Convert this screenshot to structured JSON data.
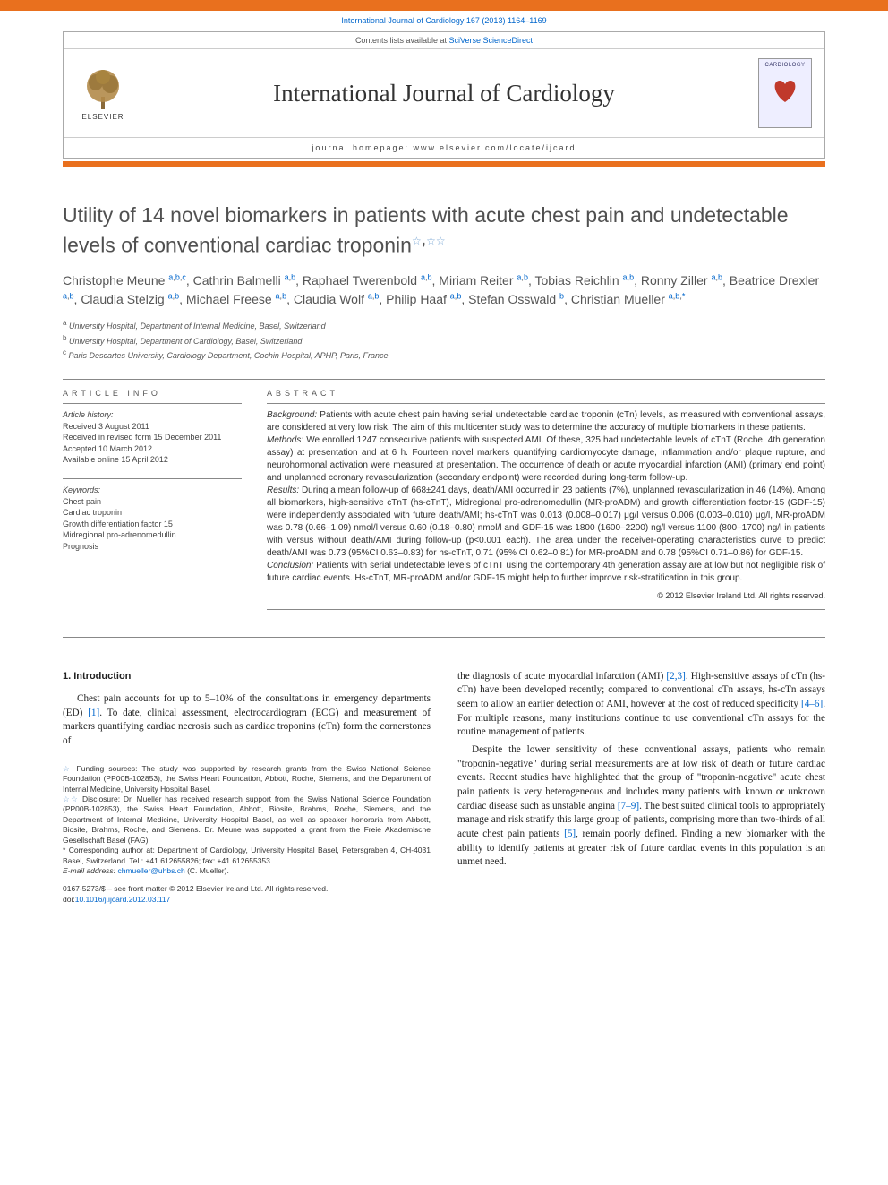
{
  "colors": {
    "orange": "#e9701e",
    "link": "#0066cc",
    "text": "#222",
    "grey": "#555",
    "rule": "#888"
  },
  "top_link": {
    "prefix": "",
    "journal": "International Journal of Cardiology 167 (2013) 1164–1169"
  },
  "header": {
    "contents_line_prefix": "Contents lists available at ",
    "contents_line_link": "SciVerse ScienceDirect",
    "journal_title": "International Journal of Cardiology",
    "homepage_label": "journal homepage: www.elsevier.com/locate/ijcard",
    "elsevier_label": "ELSEVIER",
    "cover_label": "CARDIOLOGY"
  },
  "article": {
    "title": "Utility of 14 novel biomarkers in patients with acute chest pain and undetectable levels of conventional cardiac troponin",
    "star1": "☆",
    "star2": "☆☆"
  },
  "authors_line": "Christophe Meune <sup><a>a</a>,<a>b</a>,<a>c</a></sup>, Cathrin Balmelli <sup><a>a</a>,<a>b</a></sup>, Raphael Twerenbold <sup><a>a</a>,<a>b</a></sup>, Miriam Reiter <sup><a>a</a>,<a>b</a></sup>, Tobias Reichlin <sup><a>a</a>,<a>b</a></sup>, Ronny Ziller <sup><a>a</a>,<a>b</a></sup>, Beatrice Drexler <sup><a>a</a>,<a>b</a></sup>, Claudia Stelzig <sup><a>a</a>,<a>b</a></sup>, Michael Freese <sup><a>a</a>,<a>b</a></sup>, Claudia Wolf <sup><a>a</a>,<a>b</a></sup>, Philip Haaf <sup><a>a</a>,<a>b</a></sup>, Stefan Osswald <sup><a>b</a></sup>, Christian Mueller <sup><a>a</a>,<a>b</a>,<a>*</a></sup>",
  "affiliations": [
    {
      "sup": "a",
      "text": "University Hospital, Department of Internal Medicine, Basel, Switzerland"
    },
    {
      "sup": "b",
      "text": "University Hospital, Department of Cardiology, Basel, Switzerland"
    },
    {
      "sup": "c",
      "text": "Paris Descartes University, Cardiology Department, Cochin Hospital, APHP, Paris, France"
    }
  ],
  "article_info": {
    "heading": "ARTICLE INFO",
    "history_label": "Article history:",
    "received": "Received 3 August 2011",
    "revised": "Received in revised form 15 December 2011",
    "accepted": "Accepted 10 March 2012",
    "online": "Available online 15 April 2012",
    "keywords_label": "Keywords:",
    "keywords": [
      "Chest pain",
      "Cardiac troponin",
      "Growth differentiation factor 15",
      "Midregional pro-adrenomedullin",
      "Prognosis"
    ]
  },
  "abstract": {
    "heading": "ABSTRACT",
    "background_label": "Background:",
    "background": "Patients with acute chest pain having serial undetectable cardiac troponin (cTn) levels, as measured with conventional assays, are considered at very low risk. The aim of this multicenter study was to determine the accuracy of multiple biomarkers in these patients.",
    "methods_label": "Methods:",
    "methods": "We enrolled 1247 consecutive patients with suspected AMI. Of these, 325 had undetectable levels of cTnT (Roche, 4th generation assay) at presentation and at 6 h. Fourteen novel markers quantifying cardiomyocyte damage, inflammation and/or plaque rupture, and neurohormonal activation were measured at presentation. The occurrence of death or acute myocardial infarction (AMI) (primary end point) and unplanned coronary revascularization (secondary endpoint) were recorded during long-term follow-up.",
    "results_label": "Results:",
    "results": "During a mean follow-up of 668±241 days, death/AMI occurred in 23 patients (7%), unplanned revascularization in 46 (14%). Among all biomarkers, high-sensitive cTnT (hs-cTnT), Midregional pro-adrenomedullin (MR-proADM) and growth differentiation factor-15 (GDF-15) were independently associated with future death/AMI; hs-cTnT was 0.013 (0.008–0.017) μg/l versus 0.006 (0.003–0.010) μg/l, MR-proADM was 0.78 (0.66–1.09) nmol/l versus 0.60 (0.18–0.80) nmol/l and GDF-15 was 1800 (1600–2200) ng/l versus 1100 (800–1700) ng/l in patients with versus without death/AMI during follow-up (p<0.001 each). The area under the receiver-operating characteristics curve to predict death/AMI was 0.73 (95%CI 0.63–0.83) for hs-cTnT, 0.71 (95% CI 0.62–0.81) for MR-proADM and 0.78 (95%CI 0.71–0.86) for GDF-15.",
    "conclusion_label": "Conclusion:",
    "conclusion": "Patients with serial undetectable levels of cTnT using the contemporary 4th generation assay are at low but not negligible risk of future cardiac events. Hs-cTnT, MR-proADM and/or GDF-15 might help to further improve risk-stratification in this group.",
    "copyright": "© 2012 Elsevier Ireland Ltd. All rights reserved."
  },
  "intro": {
    "heading": "1. Introduction",
    "p1": "Chest pain accounts for up to 5–10% of the consultations in emergency departments (ED) [1]. To date, clinical assessment, electrocardiogram (ECG) and measurement of markers quantifying cardiac necrosis such as cardiac troponins (cTn) form the cornerstones of",
    "p2": "the diagnosis of acute myocardial infarction (AMI) [2,3]. High-sensitive assays of cTn (hs-cTn) have been developed recently; compared to conventional cTn assays, hs-cTn assays seem to allow an earlier detection of AMI, however at the cost of reduced specificity [4–6]. For multiple reasons, many institutions continue to use conventional cTn assays for the routine management of patients.",
    "p3": "Despite the lower sensitivity of these conventional assays, patients who remain \"troponin-negative\" during serial measurements are at low risk of death or future cardiac events. Recent studies have highlighted that the group of \"troponin-negative\" acute chest pain patients is very heterogeneous and includes many patients with known or unknown cardiac disease such as unstable angina [7–9]. The best suited clinical tools to appropriately manage and risk stratify this large group of patients, comprising more than two-thirds of all acute chest pain patients [5], remain poorly defined. Finding a new biomarker with the ability to identify patients at greater risk of future cardiac events in this population is an unmet need.",
    "refs": {
      "r1": "[1]",
      "r23": "[2,3]",
      "r46": "[4–6]",
      "r79": "[7–9]",
      "r5": "[5]"
    }
  },
  "footnotes": {
    "funding_sym": "☆",
    "funding": "Funding sources: The study was supported by research grants from the Swiss National Science Foundation (PP00B-102853), the Swiss Heart Foundation, Abbott, Roche, Siemens, and the Department of Internal Medicine, University Hospital Basel.",
    "disclosure_sym": "☆☆",
    "disclosure": "Disclosure: Dr. Mueller has received research support from the Swiss National Science Foundation (PP00B-102853), the Swiss Heart Foundation, Abbott, Biosite, Brahms, Roche, Siemens, and the Department of Internal Medicine, University Hospital Basel, as well as speaker honoraria from Abbott, Biosite, Brahms, Roche, and Siemens. Dr. Meune was supported a grant from the Freie Akademische Gesellschaft Basel (FAG).",
    "corr_sym": "*",
    "corr": "Corresponding author at: Department of Cardiology, University Hospital Basel, Petersgraben 4, CH-4031 Basel, Switzerland. Tel.: +41 612655826; fax: +41 612655353.",
    "email_label": "E-mail address:",
    "email": "chmueller@uhbs.ch",
    "email_who": "(C. Mueller)."
  },
  "doi": {
    "line1": "0167-5273/$ – see front matter © 2012 Elsevier Ireland Ltd. All rights reserved.",
    "line2_prefix": "doi:",
    "line2_link": "10.1016/j.ijcard.2012.03.117"
  }
}
